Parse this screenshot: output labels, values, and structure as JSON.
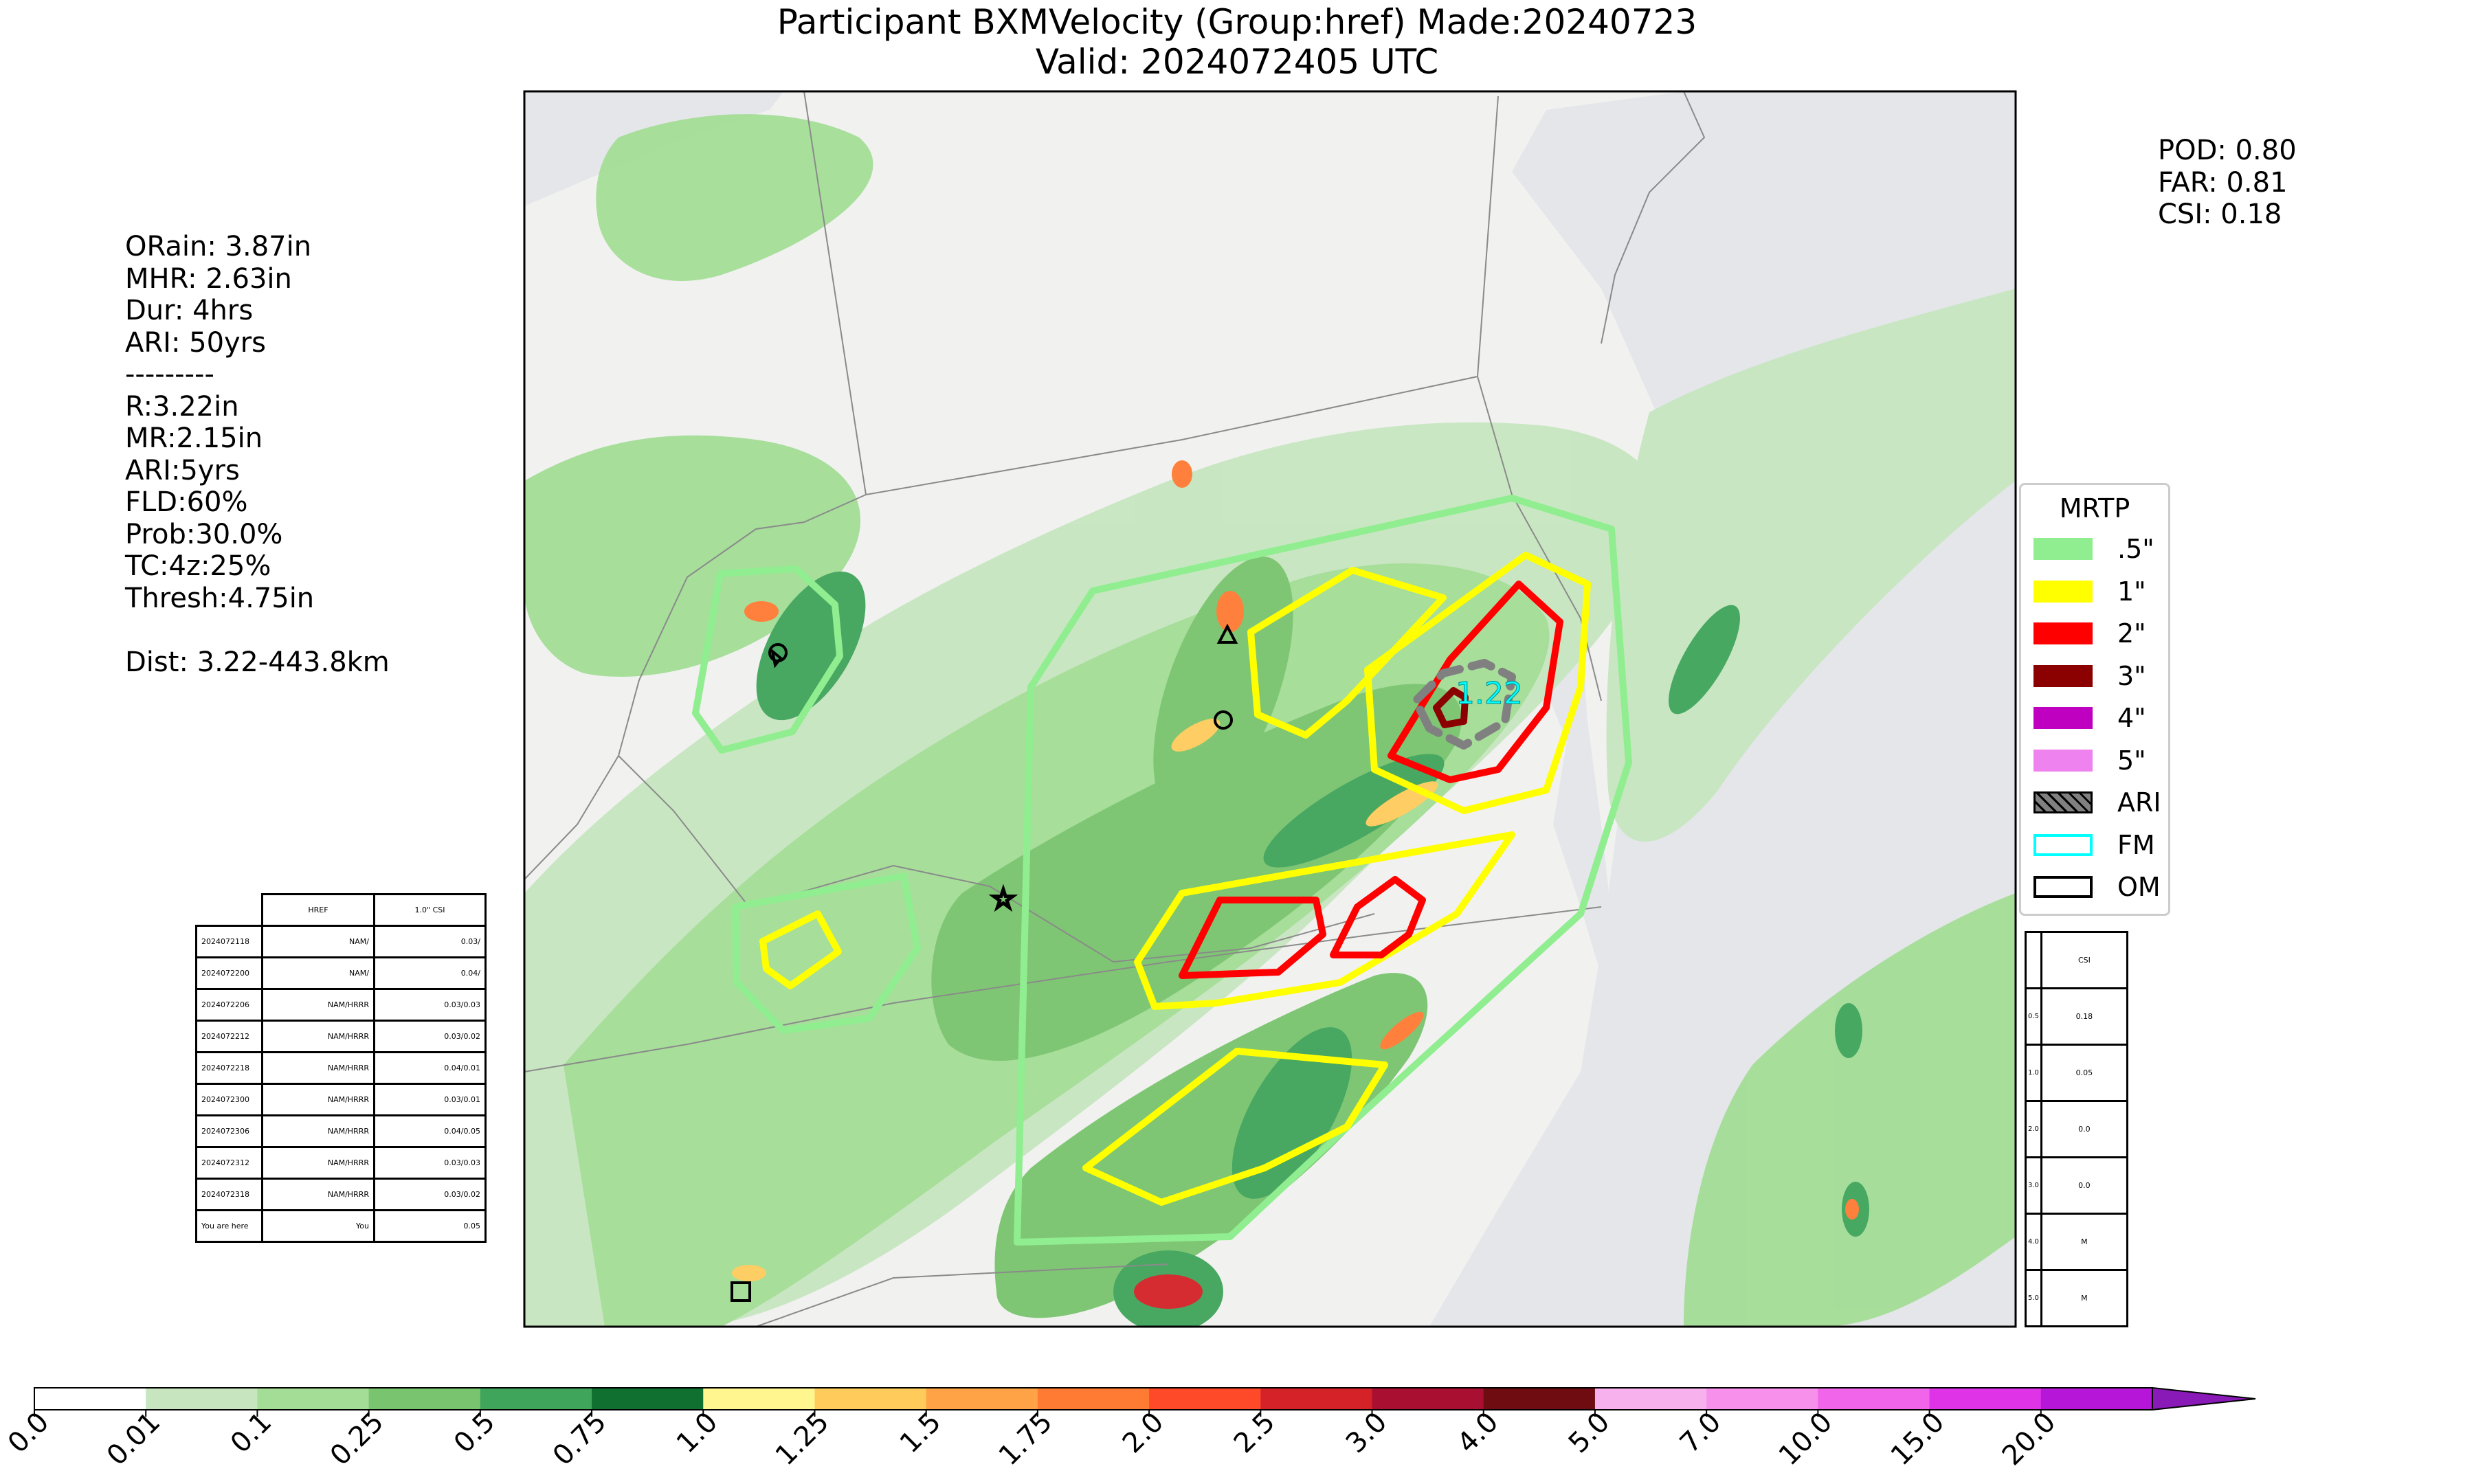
{
  "title": {
    "line1": "Participant BXMVelocity (Group:href) Made:20240723",
    "line2": "Valid: 2024072405 UTC"
  },
  "left_stats": [
    "ORain: 3.87in",
    "MHR: 2.63in",
    "Dur: 4hrs",
    "ARI: 50yrs",
    "---------",
    "R:3.22in",
    "MR:2.15in",
    "ARI:5yrs",
    "FLD:60%",
    "Prob:30.0%",
    "TC:4z:25%",
    "Thresh:4.75in",
    "",
    "Dist: 3.22-443.8km"
  ],
  "right_stats": [
    "POD: 0.80",
    "FAR: 0.81",
    "CSI: 0.18"
  ],
  "map_label": "1.22",
  "legend": {
    "title": "MRTP",
    "items": [
      {
        "label": ".5\"",
        "color": "#90ee90",
        "style": "fill"
      },
      {
        "label": "1\"",
        "color": "#ffff00",
        "style": "fill"
      },
      {
        "label": "2\"",
        "color": "#ff0000",
        "style": "fill"
      },
      {
        "label": "3\"",
        "color": "#8b0000",
        "style": "fill"
      },
      {
        "label": "4\"",
        "color": "#c000c0",
        "style": "fill"
      },
      {
        "label": "5\"",
        "color": "#ee82ee",
        "style": "fill"
      },
      {
        "label": "ARI",
        "color": "#808080",
        "style": "hatch"
      },
      {
        "label": "FM",
        "color": "#00ffff",
        "style": "outline"
      },
      {
        "label": "OM",
        "color": "#000000",
        "style": "outline"
      }
    ]
  },
  "left_table": {
    "headers": [
      "",
      "HREF",
      "1.0\" CSI"
    ],
    "rows": [
      [
        "2024072118",
        "NAM/",
        "0.03/"
      ],
      [
        "2024072200",
        "NAM/",
        "0.04/"
      ],
      [
        "2024072206",
        "NAM/HRRR",
        "0.03/0.03"
      ],
      [
        "2024072212",
        "NAM/HRRR",
        "0.03/0.02"
      ],
      [
        "2024072218",
        "NAM/HRRR",
        "0.04/0.01"
      ],
      [
        "2024072300",
        "NAM/HRRR",
        "0.03/0.01"
      ],
      [
        "2024072306",
        "NAM/HRRR",
        "0.04/0.05"
      ],
      [
        "2024072312",
        "NAM/HRRR",
        "0.03/0.03"
      ],
      [
        "2024072318",
        "NAM/HRRR",
        "0.03/0.02"
      ],
      [
        "You are here",
        "You",
        "0.05"
      ]
    ]
  },
  "right_table": {
    "header": "CSI",
    "rows": [
      [
        "0.5",
        "0.18"
      ],
      [
        "1.0",
        "0.05"
      ],
      [
        "2.0",
        "0.0"
      ],
      [
        "3.0",
        "0.0"
      ],
      [
        "4.0",
        "M"
      ],
      [
        "5.0",
        "M"
      ]
    ]
  },
  "colorbar": {
    "ticks": [
      "0.0",
      "0.01",
      "0.1",
      "0.25",
      "0.5",
      "0.75",
      "1.0",
      "1.25",
      "1.5",
      "1.75",
      "2.0",
      "2.5",
      "3.0",
      "4.0",
      "5.0",
      "7.0",
      "10.0",
      "15.0",
      "20.0"
    ],
    "colors": [
      "#ffffff",
      "#c7e6c0",
      "#a3dd96",
      "#79c46e",
      "#3fa55b",
      "#10702f",
      "#fff68f",
      "#ffcc5c",
      "#ffa346",
      "#ff7b33",
      "#ff4a2a",
      "#d42228",
      "#a80f30",
      "#6e0c12",
      "#f7b2ee",
      "#f690ea",
      "#f065ea",
      "#df33e8",
      "#b516d8",
      "#8a1ab7"
    ]
  }
}
